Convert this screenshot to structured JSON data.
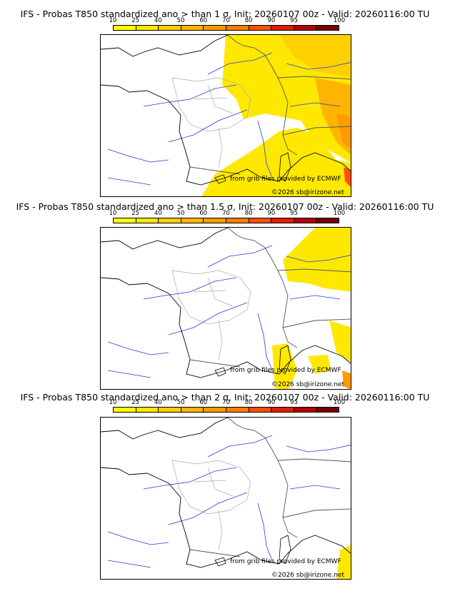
{
  "colorbar": {
    "ticks": [
      "10",
      "25",
      "40",
      "50",
      "60",
      "70",
      "80",
      "90",
      "95",
      "100"
    ],
    "colors": [
      "#ffff00",
      "#ffe800",
      "#ffce00",
      "#ffb400",
      "#ff9a00",
      "#ff7c00",
      "#ff5000",
      "#e01e00",
      "#b40000",
      "#7a0000"
    ]
  },
  "panels": [
    {
      "title": "IFS - Probas T850  standardized ano > than 1 σ, Init: 20260107 00z - Valid: 20260116:00 TU",
      "threshold_sigma": 1,
      "coverage": "large",
      "credit_source": "from grib files provided by ECMWF",
      "credit_copyright": "©2026 sb@irizone.net"
    },
    {
      "title": "IFS - Probas T850  standardized ano > than 1.5 σ, Init: 20260107 00z - Valid: 20260116:00 TU",
      "threshold_sigma": 1.5,
      "coverage": "medium",
      "credit_source": "from grib files provided by ECMWF",
      "credit_copyright": "©2026 sb@irizone.net"
    },
    {
      "title": "IFS - Probas T850  standardized ano > than 2 σ, Init: 20260107 00z - Valid: 20260116:00 TU",
      "threshold_sigma": 2,
      "coverage": "small",
      "credit_source": "from grib files provided by ECMWF",
      "credit_copyright": "©2026 sb@irizone.net"
    }
  ]
}
